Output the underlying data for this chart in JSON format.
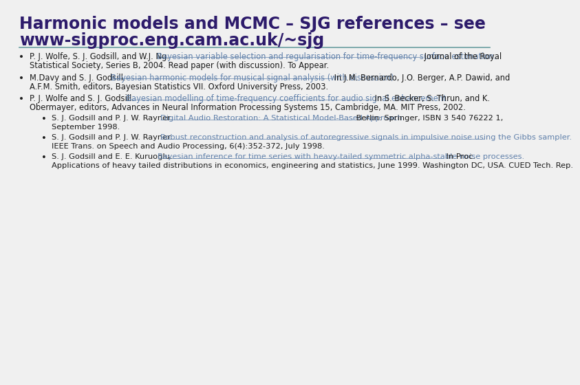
{
  "title_line1": "Harmonic models and MCMC – SJG references – see",
  "title_line2": "www-sigproc.eng.cam.ac.uk/~sjg",
  "title_color": "#2D1B6B",
  "title_fontsize": 17,
  "separator_color": "#6A9EA0",
  "bg_color": "#F0F0F0",
  "text_color": "#1a1a1a",
  "link_color": "#6080AA",
  "body_fontsize": 8.3,
  "bullet1_normal": "P. J. Wolfe, S. J. Godsill, and W.J. Ng. ",
  "bullet1_link": "Bayesian variable selection and regularisation for time-frequency surface estimation.",
  "bullet1_rest": " ⁣Journal of the Royal Statistical Society, Series B⁣, 2004. Read paper (with discussion). To Appear.",
  "bullet2_normal": "M.Davy and S. J. Godsill. ",
  "bullet2_link": "Bayesian harmonic models for musical signal analysis (with discussion).",
  "bullet2_rest": " In J.M. Bernardo, J.O. Berger, A.P. Dawid, and A.F.M. Smith, editors, ⁣Bayesian Statistics VII⁣. Oxford University Press, 2003.",
  "bullet3_normal": "P. J. Wolfe and S. J. Godsill. ",
  "bullet3_link": "Bayesian modelling of time-frequency coefficients for audio signal enhancement.",
  "bullet3_rest": " In S. Becker, S. Thrun, and K. Obermayer, editors, ⁣Advances in Neural Information Processing Systems 15, Cambridge, MA⁣. MIT Press, 2002.",
  "sub1_normal": "S. J. Godsill and P. J. W. Rayner. ",
  "sub1_link": "Digital Audio Restoration: A Statistical Model-Based Approach.",
  "sub1_rest": " Berlin: Springer, ISBN 3 540 76222 1, September 1998.",
  "sub2_normal": "S. J. Godsill and P. J. W. Rayner. ",
  "sub2_link": "Robust reconstruction and analysis of autoregressive signals in impulsive noise using the Gibbs sampler.",
  "sub2_rest": " ⁣IEEE Trans. on Speech and Audio Processing⁣, 6(4):352-372, July 1998.",
  "sub3_normal": "S. J. Godsill and E. E. Kuruoglu. ",
  "sub3_link": "Bayesian inference for time series with heavy-tailed symmetric alpha-stable noise processes.",
  "sub3_rest": " In ⁣Proc. Applications of heavy tailed distributions in economics, engineering and statistics⁣, June 1999. Washington DC, USA. CUED Tech. Rep."
}
